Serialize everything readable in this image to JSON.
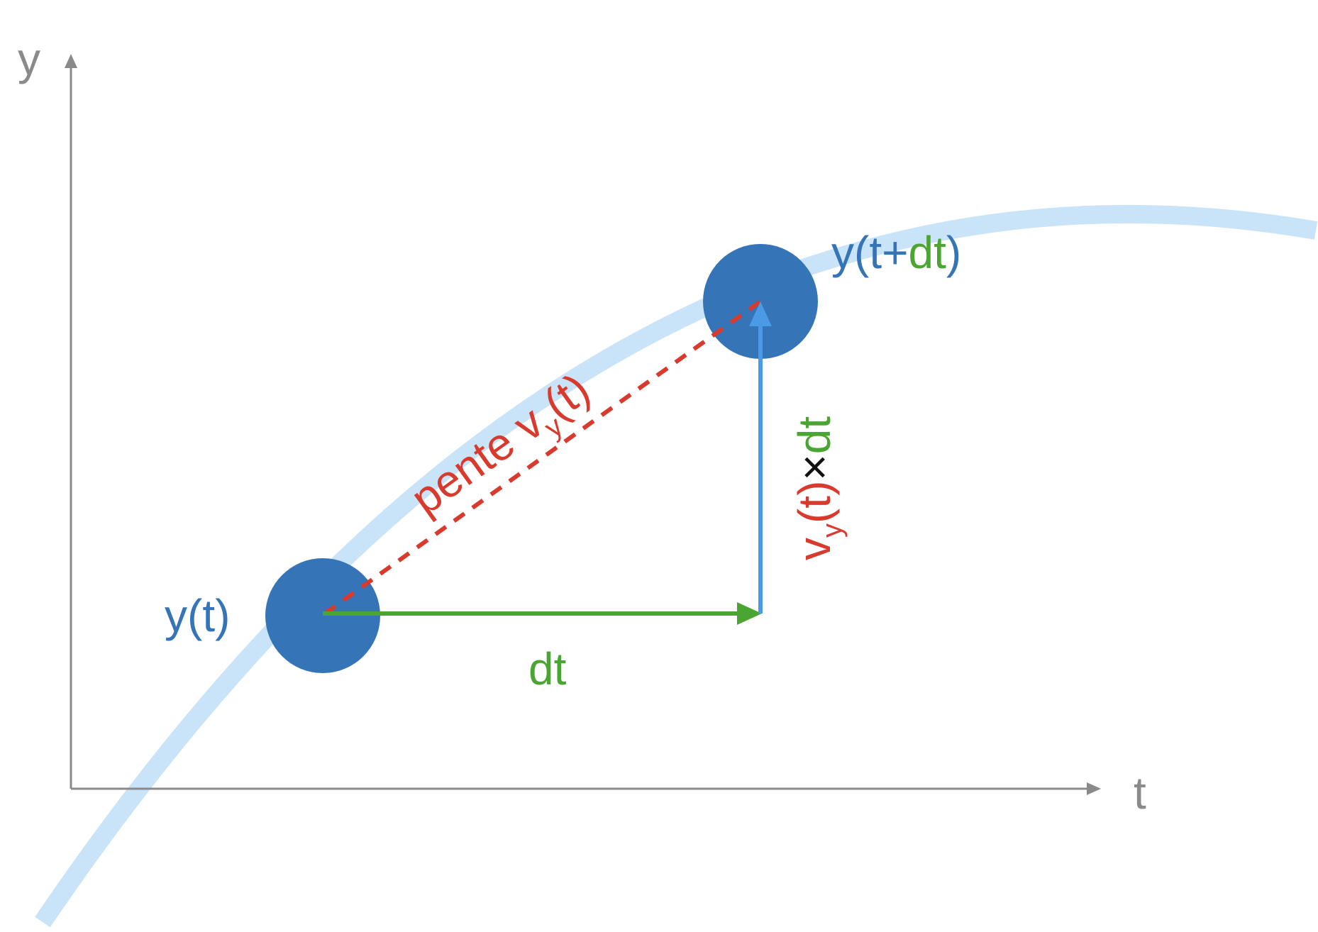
{
  "axes": {
    "y_label": "y",
    "x_label": "t"
  },
  "point_start": {
    "label_y": "y",
    "label_open": "(",
    "label_t": "t",
    "label_close": ")"
  },
  "point_end": {
    "label_y": "y",
    "label_open": "(",
    "label_t": "t+",
    "label_dt": "dt",
    "label_close": ")"
  },
  "slope_label": {
    "prefix": "pente v",
    "subscript": "y",
    "open": "(",
    "t": "t",
    "close": ")"
  },
  "dt_label": "dt",
  "increment_label": {
    "v": "v",
    "subscript": "y",
    "paren_t": "(t)",
    "times": "×",
    "dt": "dt"
  },
  "colors": {
    "axis": "#8a8a8a",
    "curve": "#c9e3f8",
    "point": "#3574b7",
    "dt_arrow": "#4aa532",
    "increment_arrow": "#4a9ae6",
    "slope": "#d83a2e",
    "text_blue": "#3574b7",
    "text_green": "#4aa532",
    "text_red": "#d83a2e",
    "text_black": "#111111"
  }
}
